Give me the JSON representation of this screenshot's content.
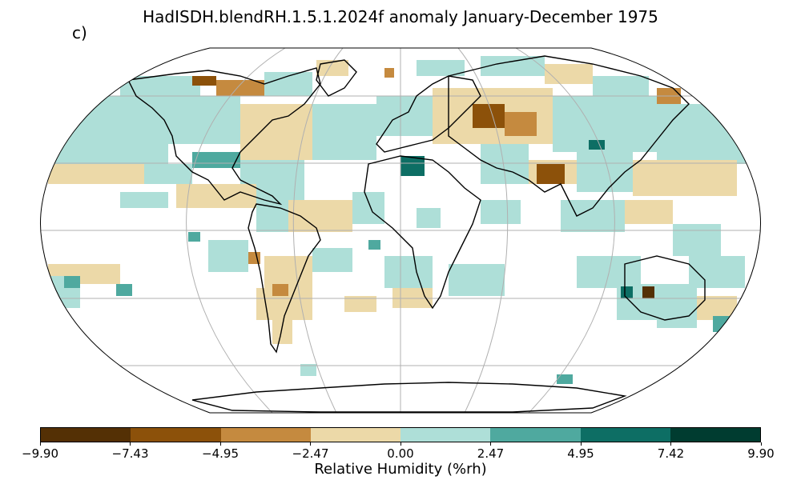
{
  "figure": {
    "title": "HadISDH.blendRH.1.5.1.2024f anomaly January-December 1975",
    "panel_label": "c)"
  },
  "colorbar": {
    "label": "Relative Humidity (%rh)",
    "ticks": [
      "−9.90",
      "−7.43",
      "−4.95",
      "−2.47",
      "0.00",
      "2.47",
      "4.95",
      "7.42",
      "9.90"
    ],
    "colors": [
      "#543005",
      "#8c510a",
      "#c58a3f",
      "#ecd9a8",
      "#aedfd8",
      "#4fa99f",
      "#0d6e64",
      "#003c30"
    ]
  },
  "map": {
    "projection": "Robinson",
    "gridlines": true,
    "coastlines": true
  }
}
